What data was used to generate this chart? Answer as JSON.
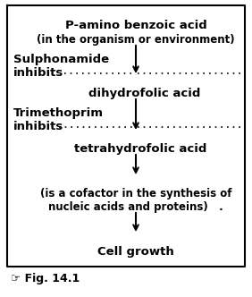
{
  "fig_width": 2.82,
  "fig_height": 3.32,
  "dpi": 100,
  "bg_color": "#ffffff",
  "border_color": "#000000",
  "text_color": "#000000",
  "title_line1": "P-amino benzoic acid",
  "title_line2": "(in the organism or environment)",
  "sulph_line1": "Sulphonamide",
  "sulph_line2": "inhibits",
  "dihydro": "dihydrofolic acid",
  "trimeth_line1": "Trimethoprim",
  "trimeth_line2": "inhibits",
  "tetrahydro": "tetrahydrofolic acid",
  "cofactor_line1": "(is a cofactor in the synthesis of",
  "cofactor_line2": "nucleic acids and proteins)   .",
  "cell_growth": "Cell growth",
  "fig_label": "Fig. 14.1",
  "arrow_color": "#000000",
  "dot_color": "#000000",
  "border_lw": 1.5,
  "arrow_lw": 1.5,
  "dot_lw": 1.2
}
